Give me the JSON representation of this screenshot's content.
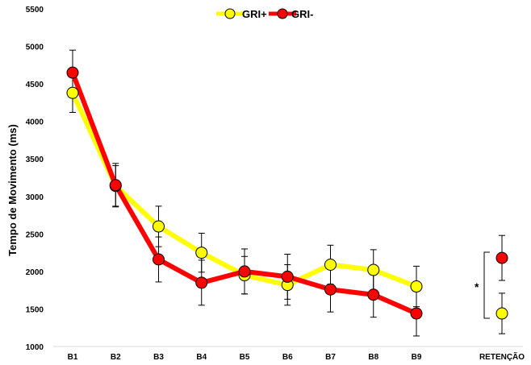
{
  "chart_data": {
    "type": "line",
    "ylabel": "Tempo de Movimento (ms)",
    "xlabel": "",
    "ylim": [
      1000,
      5500
    ],
    "yticks": [
      1000,
      1500,
      2000,
      2500,
      3000,
      3500,
      4000,
      4500,
      5000,
      5500
    ],
    "categories": [
      "B1",
      "B2",
      "B3",
      "B4",
      "B5",
      "B6",
      "B7",
      "B8",
      "B9"
    ],
    "retention_label": "RETENÇÃO",
    "significance_marker": "*",
    "legend_position": "top-center",
    "grid": false,
    "series": [
      {
        "name": "GRI+",
        "color": "#ffff00",
        "values": [
          4380,
          3140,
          2600,
          2250,
          1950,
          1820,
          2090,
          2020,
          1800
        ],
        "errors": [
          260,
          270,
          270,
          260,
          250,
          270,
          260,
          270,
          270
        ],
        "retention": 1440,
        "retention_error": 270
      },
      {
        "name": "GRI-",
        "color": "#ff0000",
        "values": [
          4650,
          3150,
          2160,
          1850,
          2000,
          1930,
          1760,
          1690,
          1440
        ],
        "errors": [
          300,
          290,
          300,
          300,
          300,
          300,
          300,
          300,
          300
        ],
        "retention": 2180,
        "retention_error": 300
      }
    ]
  }
}
